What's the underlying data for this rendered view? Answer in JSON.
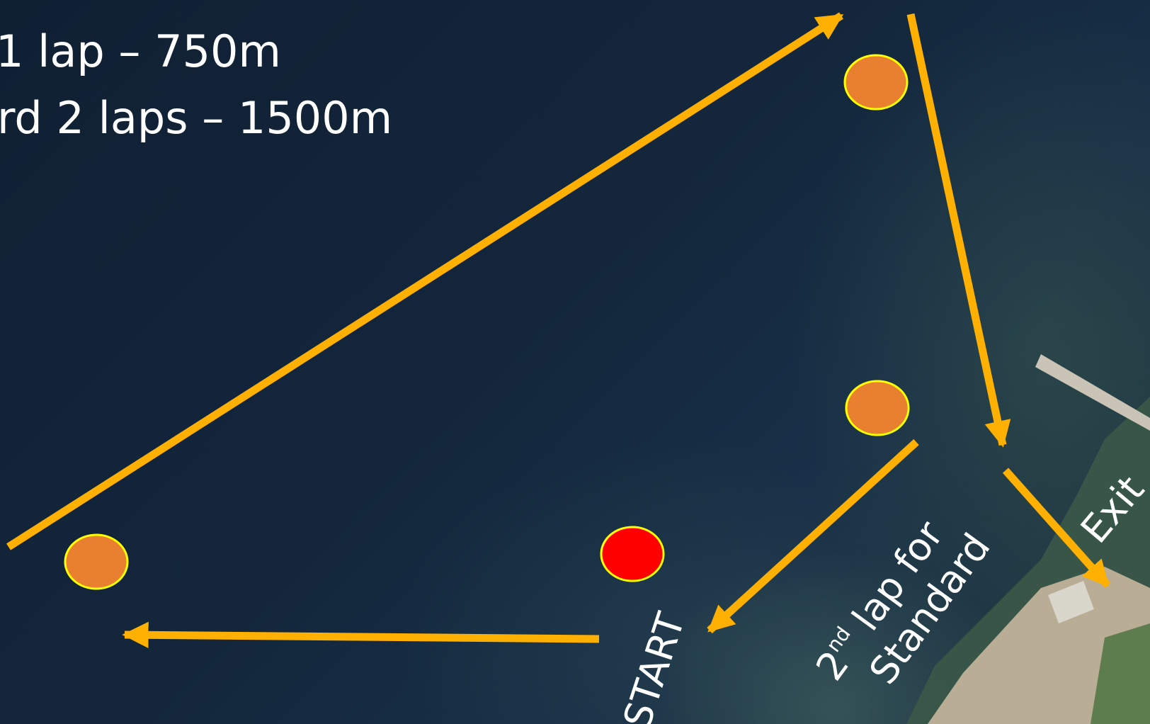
{
  "course": {
    "sprint_line": "1 lap – 750m",
    "standard_line": "rd 2 laps – 1500m"
  },
  "labels": {
    "start": "START",
    "exit": "Exit",
    "second_lap_ordinal": "2",
    "second_lap_suffix": "nd",
    "second_lap_text": " lap for",
    "second_lap_line2": "Standard"
  },
  "buoys": [
    {
      "name": "turn-buoy-top",
      "kind": "turn"
    },
    {
      "name": "turn-buoy-middle",
      "kind": "turn"
    },
    {
      "name": "turn-buoy-left",
      "kind": "turn"
    },
    {
      "name": "start-buoy",
      "kind": "start"
    }
  ],
  "colors": {
    "arrow": "#ffb000",
    "turn_buoy": "#e98030",
    "start_buoy": "#ff0000",
    "buoy_outline": "#ffff00",
    "water": "#13263b",
    "text": "#ffffff"
  }
}
